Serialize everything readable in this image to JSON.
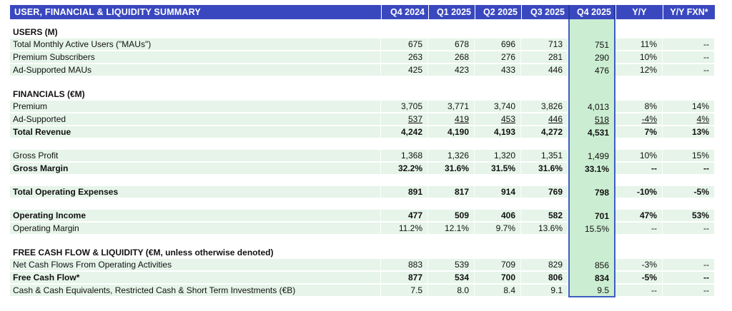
{
  "table": {
    "title": "USER, FINANCIAL & LIQUIDITY SUMMARY",
    "columns": [
      "Q4 2024",
      "Q1 2025",
      "Q2 2025",
      "Q3 2025",
      "Q4 2025",
      "Y/Y",
      "Y/Y FXN*"
    ],
    "highlight_column": "Q4 2025",
    "colors": {
      "header_bg": "#3A48BF",
      "row_green": "#E6F4E9",
      "highlight_green": "#CBEDD1",
      "highlight_border": "#3E5EC2",
      "text": "#111111"
    },
    "rows": [
      {
        "type": "spacer-small"
      },
      {
        "type": "section",
        "label": "USERS (M)"
      },
      {
        "type": "data",
        "label": "Total Monthly Active Users (\"MAUs\")",
        "values": [
          "675",
          "678",
          "696",
          "713",
          "751",
          "11%",
          "--"
        ]
      },
      {
        "type": "data",
        "label": "Premium Subscribers",
        "values": [
          "263",
          "268",
          "276",
          "281",
          "290",
          "10%",
          "--"
        ]
      },
      {
        "type": "data",
        "label": "Ad-Supported MAUs",
        "values": [
          "425",
          "423",
          "433",
          "446",
          "476",
          "12%",
          "--"
        ]
      },
      {
        "type": "spacer"
      },
      {
        "type": "section",
        "label": "FINANCIALS (€M)"
      },
      {
        "type": "data",
        "label": "Premium",
        "values": [
          "3,705",
          "3,771",
          "3,740",
          "3,826",
          "4,013",
          "8%",
          "14%"
        ]
      },
      {
        "type": "data",
        "underline": true,
        "label": "Ad-Supported",
        "values": [
          "537",
          "419",
          "453",
          "446",
          "518",
          "-4%",
          "4%"
        ]
      },
      {
        "type": "data",
        "bold": true,
        "label": "Total Revenue",
        "values": [
          "4,242",
          "4,190",
          "4,193",
          "4,272",
          "4,531",
          "7%",
          "13%"
        ]
      },
      {
        "type": "spacer"
      },
      {
        "type": "data",
        "label": "Gross Profit",
        "values": [
          "1,368",
          "1,326",
          "1,320",
          "1,351",
          "1,499",
          "10%",
          "15%"
        ]
      },
      {
        "type": "data",
        "bold": true,
        "label": "Gross Margin",
        "values": [
          "32.2%",
          "31.6%",
          "31.5%",
          "31.6%",
          "33.1%",
          "--",
          "--"
        ]
      },
      {
        "type": "spacer"
      },
      {
        "type": "data",
        "bold": true,
        "label": "Total Operating Expenses",
        "values": [
          "891",
          "817",
          "914",
          "769",
          "798",
          "-10%",
          "-5%"
        ]
      },
      {
        "type": "spacer"
      },
      {
        "type": "data",
        "bold": true,
        "label": "Operating Income",
        "values": [
          "477",
          "509",
          "406",
          "582",
          "701",
          "47%",
          "53%"
        ]
      },
      {
        "type": "data",
        "label": "Operating Margin",
        "values": [
          "11.2%",
          "12.1%",
          "9.7%",
          "13.6%",
          "15.5%",
          "--",
          "--"
        ]
      },
      {
        "type": "spacer"
      },
      {
        "type": "section",
        "label": "FREE CASH FLOW & LIQUIDITY (€M, unless otherwise denoted)"
      },
      {
        "type": "data",
        "label": "Net Cash Flows From Operating Activities",
        "values": [
          "883",
          "539",
          "709",
          "829",
          "856",
          "-3%",
          "--"
        ]
      },
      {
        "type": "data",
        "bold": true,
        "label": "Free Cash Flow*",
        "values": [
          "877",
          "534",
          "700",
          "806",
          "834",
          "-5%",
          "--"
        ]
      },
      {
        "type": "data",
        "label": "Cash & Cash Equivalents, Restricted Cash & Short Term Investments (€B)",
        "values": [
          "7.5",
          "8.0",
          "8.4",
          "9.1",
          "9.5",
          "--",
          "--"
        ]
      }
    ]
  }
}
